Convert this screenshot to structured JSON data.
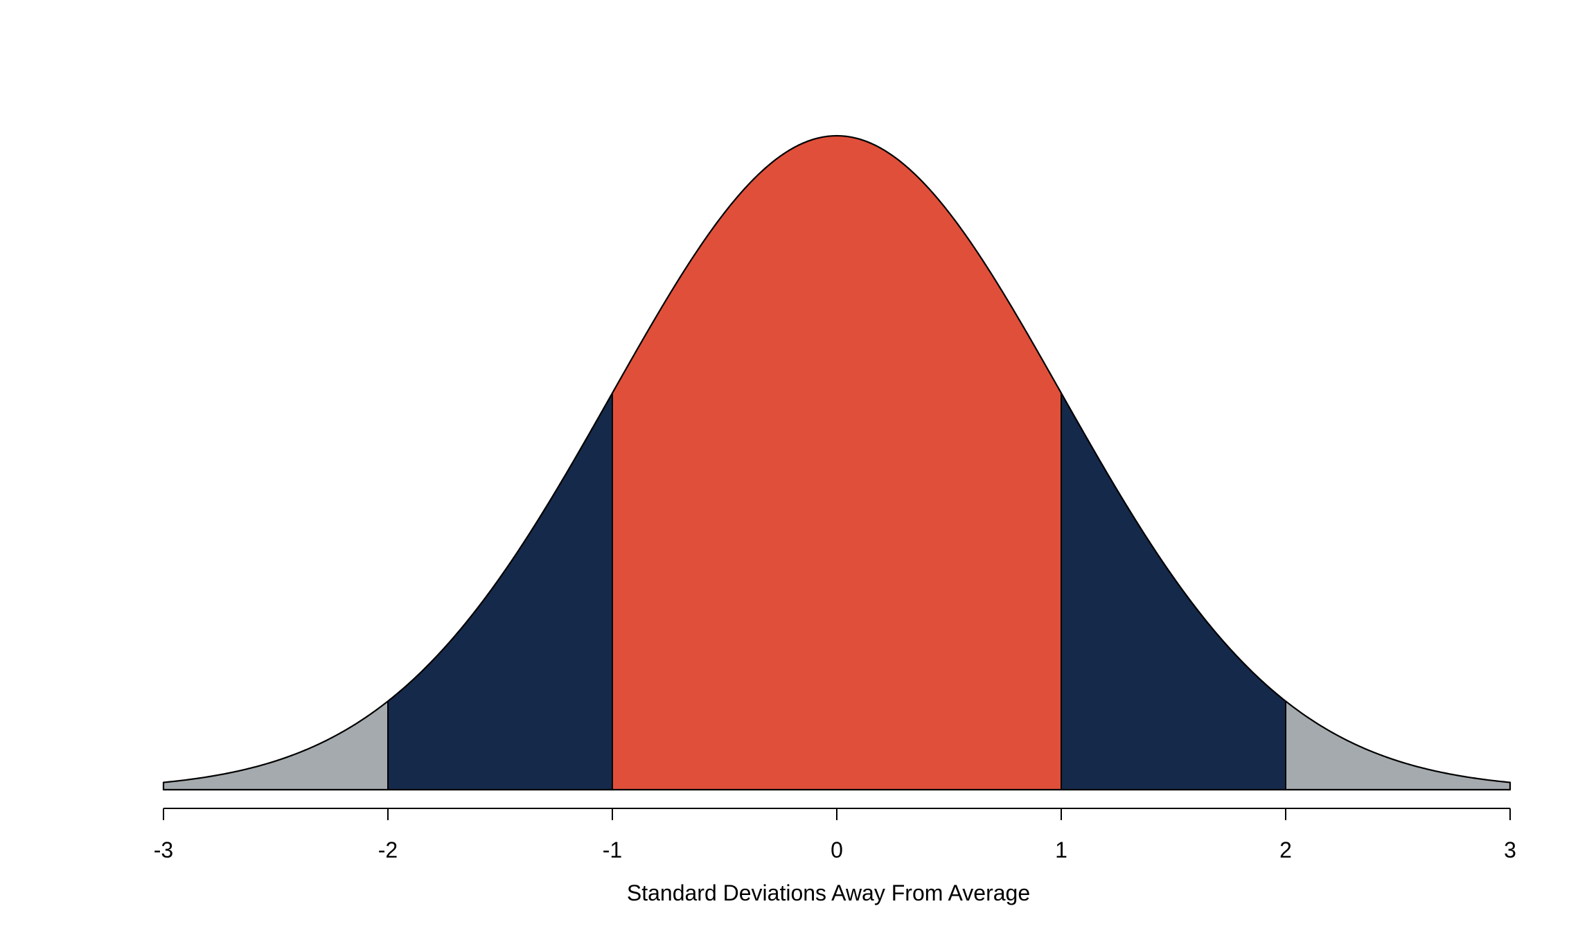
{
  "chart_data": {
    "type": "area",
    "title": "",
    "xlabel": "Standard Deviations Away From Average",
    "ylabel": "",
    "xlim": [
      -3,
      3
    ],
    "grid": false,
    "legend": "none",
    "distribution": "standard normal density",
    "x_ticks": [
      -3,
      -2,
      -1,
      0,
      1,
      2,
      3
    ],
    "x_tick_labels": [
      "-3",
      "-2",
      "-1",
      "0",
      "1",
      "2",
      "3"
    ],
    "regions": [
      {
        "from": -3,
        "to": -2,
        "color": "#a4aaad"
      },
      {
        "from": -2,
        "to": -1,
        "color": "#15294b"
      },
      {
        "from": -1,
        "to": 1,
        "color": "#e04f3a"
      },
      {
        "from": 1,
        "to": 2,
        "color": "#15294b"
      },
      {
        "from": 2,
        "to": 3,
        "color": "#a4aaad"
      }
    ],
    "boundaries": [
      -2,
      -1,
      1,
      2
    ],
    "outline_color": "#000000"
  }
}
